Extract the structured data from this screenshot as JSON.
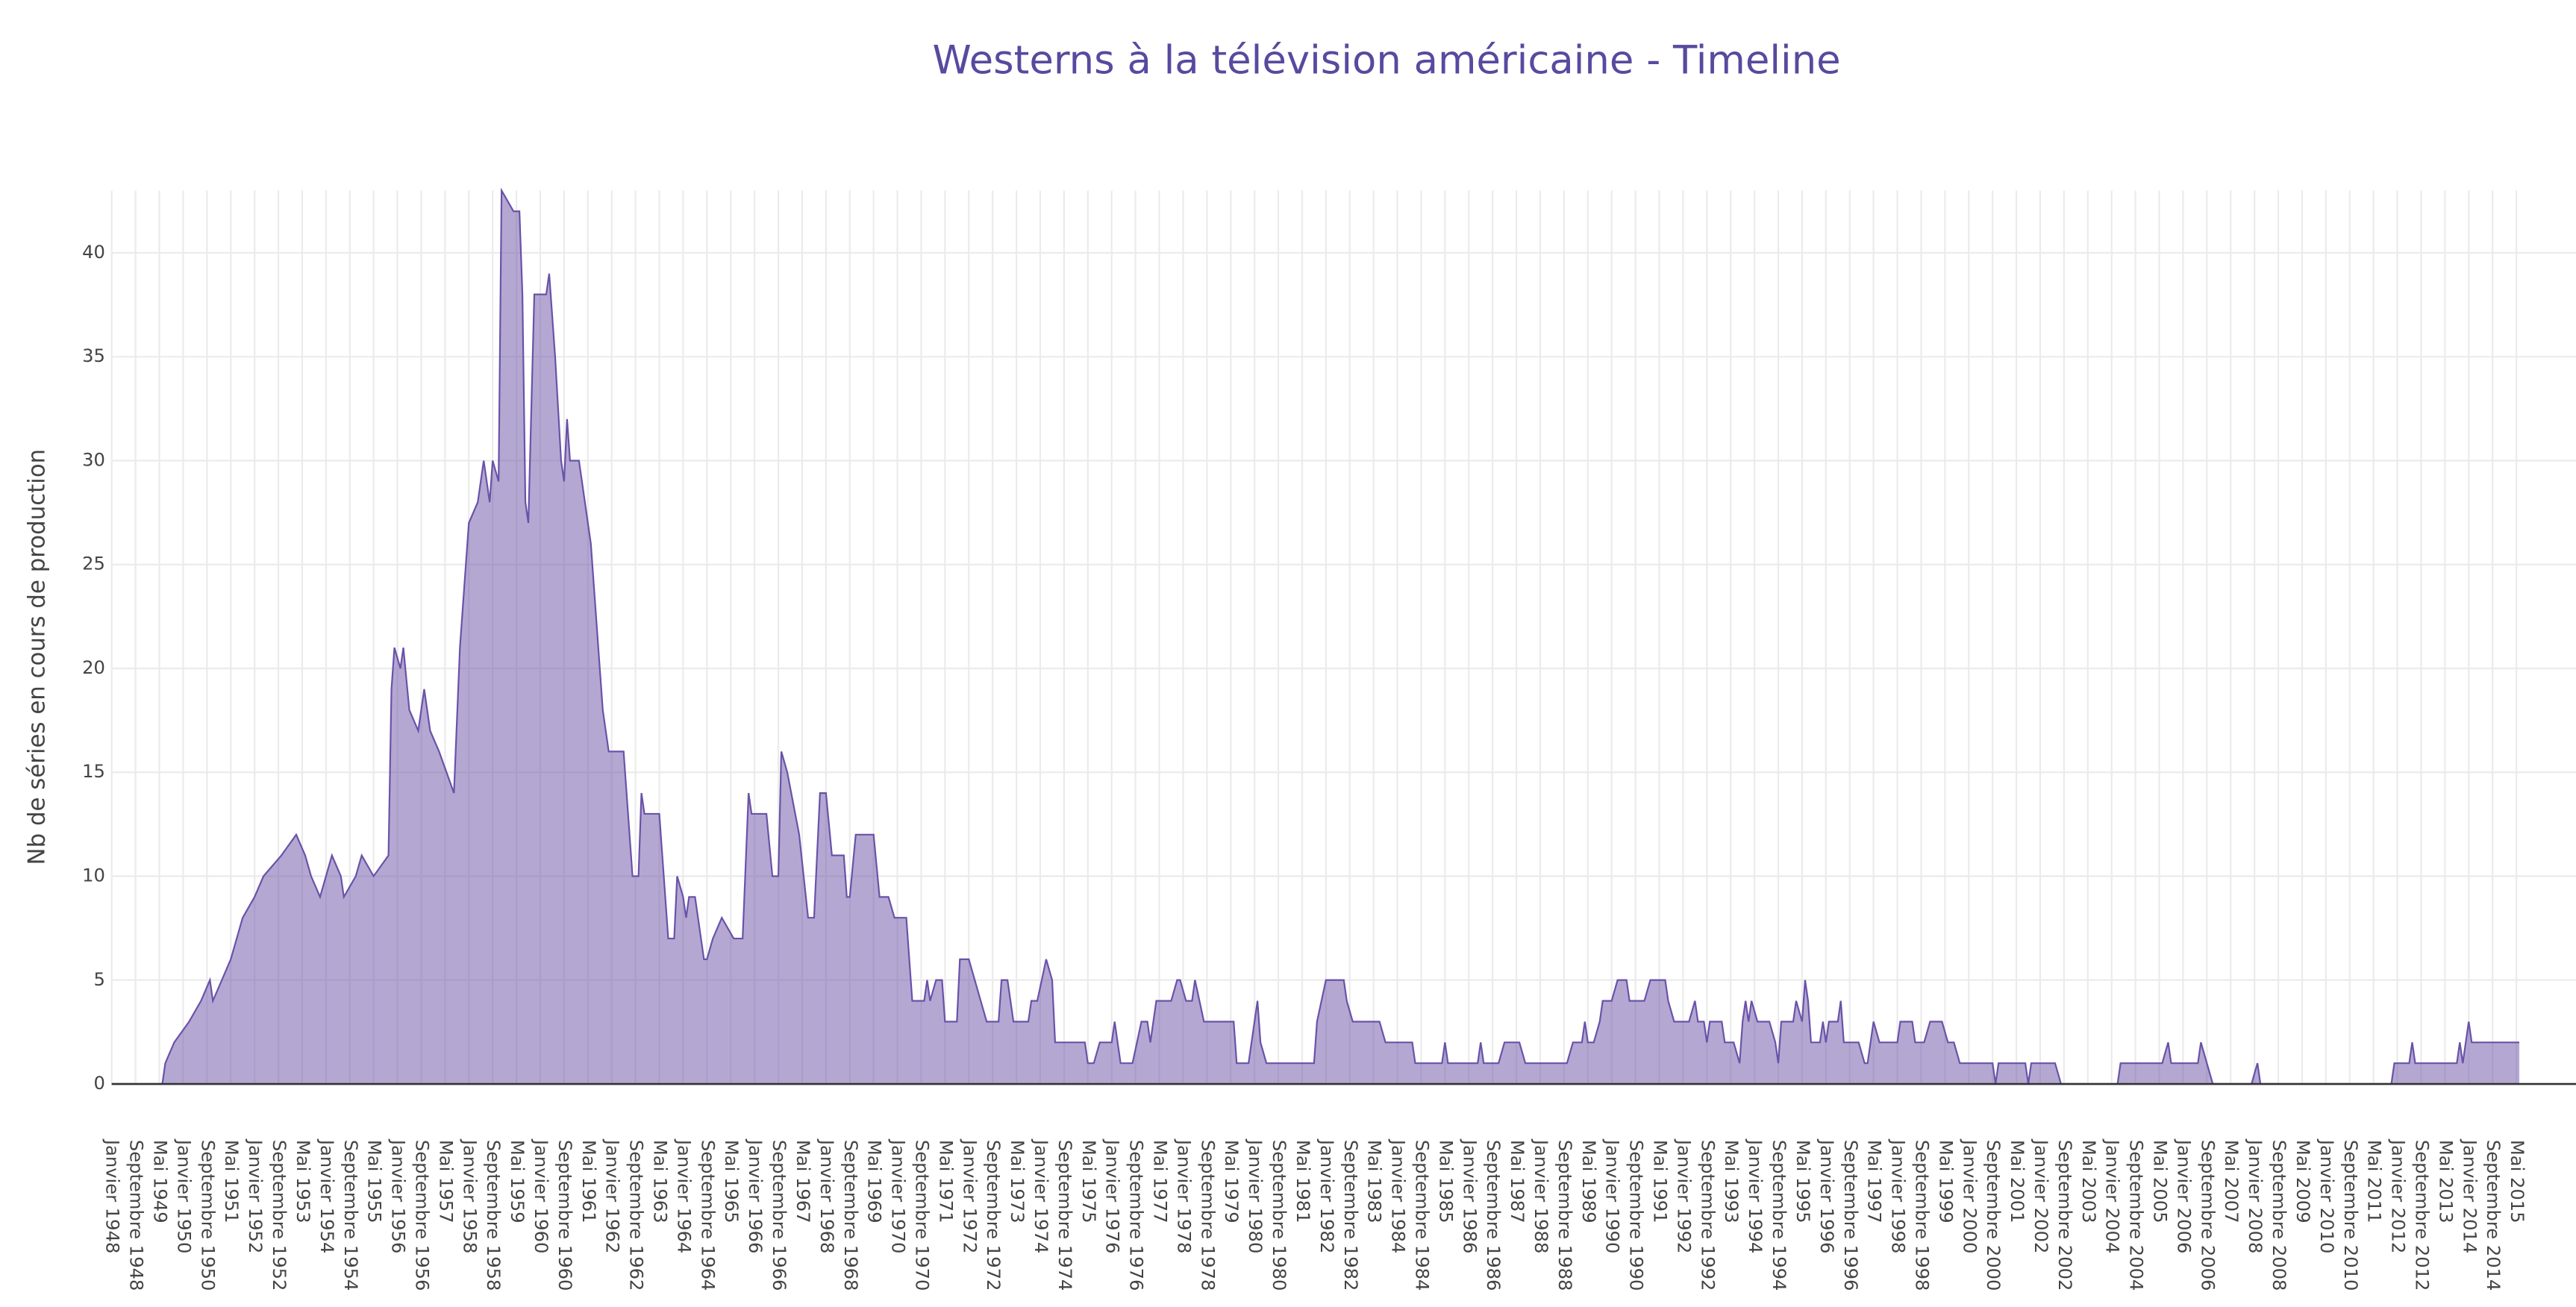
{
  "chart_data": {
    "type": "area",
    "title": "Westerns à la télévision américaine  - Timeline",
    "y_label": "Nb de séries en cours de production",
    "color": "#6a52a8",
    "grid": true,
    "ylim": [
      0,
      43
    ],
    "yticks": [
      0,
      5,
      10,
      15,
      20,
      25,
      30,
      35,
      40
    ],
    "xlim": [
      "1948-01",
      "2016-02"
    ],
    "xticks": [
      {
        "value": "1948-01",
        "label": "Janvier 1948"
      },
      {
        "value": "1948-09",
        "label": "Septembre 1948"
      },
      {
        "value": "1949-05",
        "label": "Mai 1949"
      },
      {
        "value": "1950-01",
        "label": "Janvier 1950"
      },
      {
        "value": "1950-09",
        "label": "Septembre 1950"
      },
      {
        "value": "1951-05",
        "label": "Mai 1951"
      },
      {
        "value": "1952-01",
        "label": "Janvier 1952"
      },
      {
        "value": "1952-09",
        "label": "Septembre 1952"
      },
      {
        "value": "1953-05",
        "label": "Mai 1953"
      },
      {
        "value": "1954-01",
        "label": "Janvier 1954"
      },
      {
        "value": "1954-09",
        "label": "Septembre 1954"
      },
      {
        "value": "1955-05",
        "label": "Mai 1955"
      },
      {
        "value": "1956-01",
        "label": "Janvier 1956"
      },
      {
        "value": "1956-09",
        "label": "Septembre 1956"
      },
      {
        "value": "1957-05",
        "label": "Mai 1957"
      },
      {
        "value": "1958-01",
        "label": "Janvier 1958"
      },
      {
        "value": "1958-09",
        "label": "Septembre 1958"
      },
      {
        "value": "1959-05",
        "label": "Mai 1959"
      },
      {
        "value": "1960-01",
        "label": "Janvier 1960"
      },
      {
        "value": "1960-09",
        "label": "Septembre 1960"
      },
      {
        "value": "1961-05",
        "label": "Mai 1961"
      },
      {
        "value": "1962-01",
        "label": "Janvier 1962"
      },
      {
        "value": "1962-09",
        "label": "Septembre 1962"
      },
      {
        "value": "1963-05",
        "label": "Mai 1963"
      },
      {
        "value": "1964-01",
        "label": "Janvier 1964"
      },
      {
        "value": "1964-09",
        "label": "Septembre 1964"
      },
      {
        "value": "1965-05",
        "label": "Mai 1965"
      },
      {
        "value": "1966-01",
        "label": "Janvier 1966"
      },
      {
        "value": "1966-09",
        "label": "Septembre 1966"
      },
      {
        "value": "1967-05",
        "label": "Mai 1967"
      },
      {
        "value": "1968-01",
        "label": "Janvier 1968"
      },
      {
        "value": "1968-09",
        "label": "Septembre 1968"
      },
      {
        "value": "1969-05",
        "label": "Mai 1969"
      },
      {
        "value": "1970-01",
        "label": "Janvier 1970"
      },
      {
        "value": "1970-09",
        "label": "Septembre 1970"
      },
      {
        "value": "1971-05",
        "label": "Mai 1971"
      },
      {
        "value": "1972-01",
        "label": "Janvier 1972"
      },
      {
        "value": "1972-09",
        "label": "Septembre 1972"
      },
      {
        "value": "1973-05",
        "label": "Mai 1973"
      },
      {
        "value": "1974-01",
        "label": "Janvier 1974"
      },
      {
        "value": "1974-09",
        "label": "Septembre 1974"
      },
      {
        "value": "1975-05",
        "label": "Mai 1975"
      },
      {
        "value": "1976-01",
        "label": "Janvier 1976"
      },
      {
        "value": "1976-09",
        "label": "Septembre 1976"
      },
      {
        "value": "1977-05",
        "label": "Mai 1977"
      },
      {
        "value": "1978-01",
        "label": "Janvier 1978"
      },
      {
        "value": "1978-09",
        "label": "Septembre 1978"
      },
      {
        "value": "1979-05",
        "label": "Mai 1979"
      },
      {
        "value": "1980-01",
        "label": "Janvier 1980"
      },
      {
        "value": "1980-09",
        "label": "Septembre 1980"
      },
      {
        "value": "1981-05",
        "label": "Mai 1981"
      },
      {
        "value": "1982-01",
        "label": "Janvier 1982"
      },
      {
        "value": "1982-09",
        "label": "Septembre 1982"
      },
      {
        "value": "1983-05",
        "label": "Mai 1983"
      },
      {
        "value": "1984-01",
        "label": "Janvier 1984"
      },
      {
        "value": "1984-09",
        "label": "Septembre 1984"
      },
      {
        "value": "1985-05",
        "label": "Mai 1985"
      },
      {
        "value": "1986-01",
        "label": "Janvier 1986"
      },
      {
        "value": "1986-09",
        "label": "Septembre 1986"
      },
      {
        "value": "1987-05",
        "label": "Mai 1987"
      },
      {
        "value": "1988-01",
        "label": "Janvier 1988"
      },
      {
        "value": "1988-09",
        "label": "Septembre 1988"
      },
      {
        "value": "1989-05",
        "label": "Mai 1989"
      },
      {
        "value": "1990-01",
        "label": "Janvier 1990"
      },
      {
        "value": "1990-09",
        "label": "Septembre 1990"
      },
      {
        "value": "1991-05",
        "label": "Mai 1991"
      },
      {
        "value": "1992-01",
        "label": "Janvier 1992"
      },
      {
        "value": "1992-09",
        "label": "Septembre 1992"
      },
      {
        "value": "1993-05",
        "label": "Mai 1993"
      },
      {
        "value": "1994-01",
        "label": "Janvier 1994"
      },
      {
        "value": "1994-09",
        "label": "Septembre 1994"
      },
      {
        "value": "1995-05",
        "label": "Mai 1995"
      },
      {
        "value": "1996-01",
        "label": "Janvier 1996"
      },
      {
        "value": "1996-09",
        "label": "Septembre 1996"
      },
      {
        "value": "1997-05",
        "label": "Mai 1997"
      },
      {
        "value": "1998-01",
        "label": "Janvier 1998"
      },
      {
        "value": "1998-09",
        "label": "Septembre 1998"
      },
      {
        "value": "1999-05",
        "label": "Mai 1999"
      },
      {
        "value": "2000-01",
        "label": "Janvier 2000"
      },
      {
        "value": "2000-09",
        "label": "Septembre 2000"
      },
      {
        "value": "2001-05",
        "label": "Mai 2001"
      },
      {
        "value": "2002-01",
        "label": "Janvier 2002"
      },
      {
        "value": "2002-09",
        "label": "Septembre 2002"
      },
      {
        "value": "2003-05",
        "label": "Mai 2003"
      },
      {
        "value": "2004-01",
        "label": "Janvier 2004"
      },
      {
        "value": "2004-09",
        "label": "Septembre 2004"
      },
      {
        "value": "2005-05",
        "label": "Mai 2005"
      },
      {
        "value": "2006-01",
        "label": "Janvier 2006"
      },
      {
        "value": "2006-09",
        "label": "Septembre 2006"
      },
      {
        "value": "2007-05",
        "label": "Mai 2007"
      },
      {
        "value": "2008-01",
        "label": "Janvier 2008"
      },
      {
        "value": "2008-09",
        "label": "Septembre 2008"
      },
      {
        "value": "2009-05",
        "label": "Mai 2009"
      },
      {
        "value": "2010-01",
        "label": "Janvier 2010"
      },
      {
        "value": "2010-09",
        "label": "Septembre 2010"
      },
      {
        "value": "2011-05",
        "label": "Mai 2011"
      },
      {
        "value": "2012-01",
        "label": "Janvier 2012"
      },
      {
        "value": "2012-09",
        "label": "Septembre 2012"
      },
      {
        "value": "2013-05",
        "label": "Mai 2013"
      },
      {
        "value": "2014-01",
        "label": "Janvier 2014"
      },
      {
        "value": "2014-09",
        "label": "Septembre 2014"
      },
      {
        "value": "2015-05",
        "label": "Mai 2015"
      }
    ],
    "x": [
      "1948-01",
      "1949-06",
      "1949-07",
      "1949-10",
      "1950-03",
      "1950-07",
      "1950-10",
      "1950-11",
      "1951-05",
      "1951-09",
      "1952-01",
      "1952-04",
      "1952-10",
      "1953-03",
      "1953-06",
      "1953-08",
      "1953-11",
      "1954-03",
      "1954-06",
      "1954-07",
      "1954-11",
      "1955-01",
      "1955-05",
      "1955-10",
      "1955-11",
      "1955-12",
      "1956-02",
      "1956-03",
      "1956-05",
      "1956-08",
      "1956-10",
      "1956-12",
      "1957-03",
      "1957-08",
      "1957-10",
      "1958-01",
      "1958-04",
      "1958-06",
      "1958-08",
      "1958-09",
      "1958-11",
      "1958-12",
      "1959-04",
      "1959-06",
      "1959-07",
      "1959-08",
      "1959-09",
      "1959-11",
      "1960-03",
      "1960-04",
      "1960-06",
      "1960-08",
      "1960-09",
      "1960-10",
      "1960-11",
      "1961-02",
      "1961-06",
      "1961-10",
      "1961-12",
      "1962-05",
      "1962-08",
      "1962-10",
      "1962-11",
      "1962-12",
      "1963-05",
      "1963-08",
      "1963-10",
      "1963-11",
      "1964-01",
      "1964-02",
      "1964-03",
      "1964-05",
      "1964-08",
      "1964-09",
      "1964-11",
      "1965-02",
      "1965-06",
      "1965-09",
      "1965-11",
      "1965-12",
      "1966-05",
      "1966-07",
      "1966-09",
      "1966-10",
      "1966-12",
      "1967-04",
      "1967-07",
      "1967-09",
      "1967-11",
      "1968-01",
      "1968-03",
      "1968-07",
      "1968-08",
      "1968-09",
      "1968-11",
      "1969-05",
      "1969-07",
      "1969-10",
      "1969-12",
      "1970-04",
      "1970-06",
      "1970-10",
      "1970-11",
      "1970-12",
      "1971-02",
      "1971-04",
      "1971-05",
      "1971-09",
      "1971-10",
      "1972-01",
      "1972-03",
      "1972-05",
      "1972-07",
      "1972-11",
      "1972-12",
      "1973-02",
      "1973-04",
      "1973-09",
      "1973-10",
      "1973-12",
      "1974-03",
      "1974-05",
      "1974-06",
      "1975-04",
      "1975-05",
      "1975-07",
      "1975-09",
      "1976-01",
      "1976-02",
      "1976-04",
      "1976-08",
      "1976-11",
      "1977-01",
      "1977-02",
      "1977-04",
      "1977-09",
      "1977-11",
      "1977-12",
      "1978-02",
      "1978-04",
      "1978-05",
      "1978-08",
      "1979-06",
      "1979-07",
      "1979-11",
      "1979-12",
      "1980-02",
      "1980-03",
      "1980-05",
      "1981-09",
      "1981-10",
      "1982-01",
      "1982-07",
      "1982-08",
      "1982-10",
      "1983-07",
      "1983-09",
      "1984-06",
      "1984-07",
      "1985-04",
      "1985-05",
      "1985-06",
      "1986-04",
      "1986-05",
      "1986-06",
      "1986-11",
      "1987-01",
      "1987-06",
      "1987-08",
      "1988-10",
      "1988-12",
      "1989-03",
      "1989-04",
      "1989-05",
      "1989-07",
      "1989-09",
      "1989-10",
      "1990-01",
      "1990-03",
      "1990-06",
      "1990-07",
      "1990-12",
      "1991-02",
      "1991-07",
      "1991-08",
      "1991-10",
      "1992-03",
      "1992-05",
      "1992-06",
      "1992-08",
      "1992-09",
      "1992-10",
      "1993-02",
      "1993-03",
      "1993-06",
      "1993-08",
      "1993-09",
      "1993-10",
      "1993-11",
      "1993-12",
      "1994-02",
      "1994-06",
      "1994-08",
      "1994-09",
      "1994-10",
      "1995-02",
      "1995-03",
      "1995-05",
      "1995-06",
      "1995-07",
      "1995-08",
      "1995-11",
      "1995-12",
      "1996-01",
      "1996-02",
      "1996-05",
      "1996-06",
      "1996-07",
      "1996-12",
      "1997-02",
      "1997-03",
      "1997-04",
      "1997-05",
      "1997-07",
      "1998-01",
      "1998-02",
      "1998-06",
      "1998-07",
      "1998-10",
      "1998-12",
      "1999-04",
      "1999-06",
      "1999-08",
      "1999-10",
      "2000-09",
      "2000-10",
      "2000-11",
      "2001-08",
      "2001-09",
      "2001-10",
      "2002-06",
      "2002-08",
      "2004-03",
      "2004-04",
      "2005-06",
      "2005-08",
      "2005-09",
      "2006-06",
      "2006-07",
      "2006-09",
      "2006-11",
      "2007-12",
      "2008-02",
      "2008-03",
      "2011-11",
      "2011-12",
      "2012-05",
      "2012-06",
      "2012-07",
      "2013-09",
      "2013-10",
      "2013-11",
      "2014-01",
      "2014-02",
      "2015-06"
    ],
    "values": [
      0,
      0,
      1,
      2,
      3,
      4,
      5,
      4,
      6,
      8,
      9,
      10,
      11,
      12,
      11,
      10,
      9,
      11,
      10,
      9,
      10,
      11,
      10,
      11,
      19,
      21,
      20,
      21,
      18,
      17,
      19,
      17,
      16,
      14,
      21,
      27,
      28,
      30,
      28,
      30,
      29,
      43,
      42,
      42,
      38,
      28,
      27,
      38,
      38,
      39,
      35,
      30,
      29,
      32,
      30,
      30,
      26,
      18,
      16,
      16,
      10,
      10,
      14,
      13,
      13,
      7,
      7,
      10,
      9,
      8,
      9,
      9,
      6,
      6,
      7,
      8,
      7,
      7,
      14,
      13,
      13,
      10,
      10,
      16,
      15,
      12,
      8,
      8,
      14,
      14,
      11,
      11,
      9,
      9,
      12,
      12,
      9,
      9,
      8,
      8,
      4,
      4,
      5,
      4,
      5,
      5,
      3,
      3,
      6,
      6,
      5,
      4,
      3,
      3,
      5,
      5,
      3,
      3,
      4,
      4,
      6,
      5,
      2,
      2,
      1,
      1,
      2,
      2,
      3,
      1,
      1,
      3,
      3,
      2,
      4,
      4,
      5,
      5,
      4,
      4,
      5,
      3,
      3,
      1,
      1,
      2,
      4,
      2,
      1,
      1,
      3,
      5,
      5,
      4,
      3,
      3,
      2,
      2,
      1,
      1,
      2,
      1,
      1,
      2,
      1,
      1,
      2,
      2,
      1,
      1,
      2,
      2,
      3,
      2,
      2,
      3,
      4,
      4,
      5,
      5,
      4,
      4,
      5,
      5,
      4,
      3,
      3,
      4,
      3,
      3,
      2,
      3,
      3,
      2,
      2,
      1,
      3,
      4,
      3,
      4,
      3,
      3,
      2,
      1,
      3,
      3,
      4,
      3,
      5,
      4,
      2,
      2,
      3,
      2,
      3,
      3,
      4,
      2,
      2,
      1,
      1,
      2,
      3,
      2,
      2,
      3,
      3,
      2,
      2,
      3,
      3,
      2,
      2,
      1,
      1,
      0,
      1,
      1,
      0,
      1,
      1,
      0,
      0,
      1,
      1,
      2,
      1,
      1,
      2,
      1,
      0,
      0,
      1,
      0,
      0,
      1,
      1,
      2,
      1,
      1,
      2,
      1,
      3,
      2,
      2
    ]
  }
}
